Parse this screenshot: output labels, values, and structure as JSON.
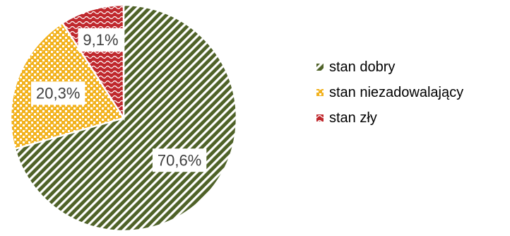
{
  "chart_data": {
    "type": "pie",
    "title": "",
    "legend_position": "right",
    "slices": [
      {
        "label": "stan dobry",
        "value": 70.6,
        "value_label": "70,6%",
        "color": "#4f6228",
        "pattern": "diagonal-stripes"
      },
      {
        "label": "stan niezadowalający",
        "value": 20.3,
        "value_label": "20,3%",
        "color": "#f2b21e",
        "pattern": "checker"
      },
      {
        "label": "stan zły",
        "value": 9.1,
        "value_label": "9,1%",
        "color": "#c0282d",
        "pattern": "wave"
      }
    ]
  }
}
